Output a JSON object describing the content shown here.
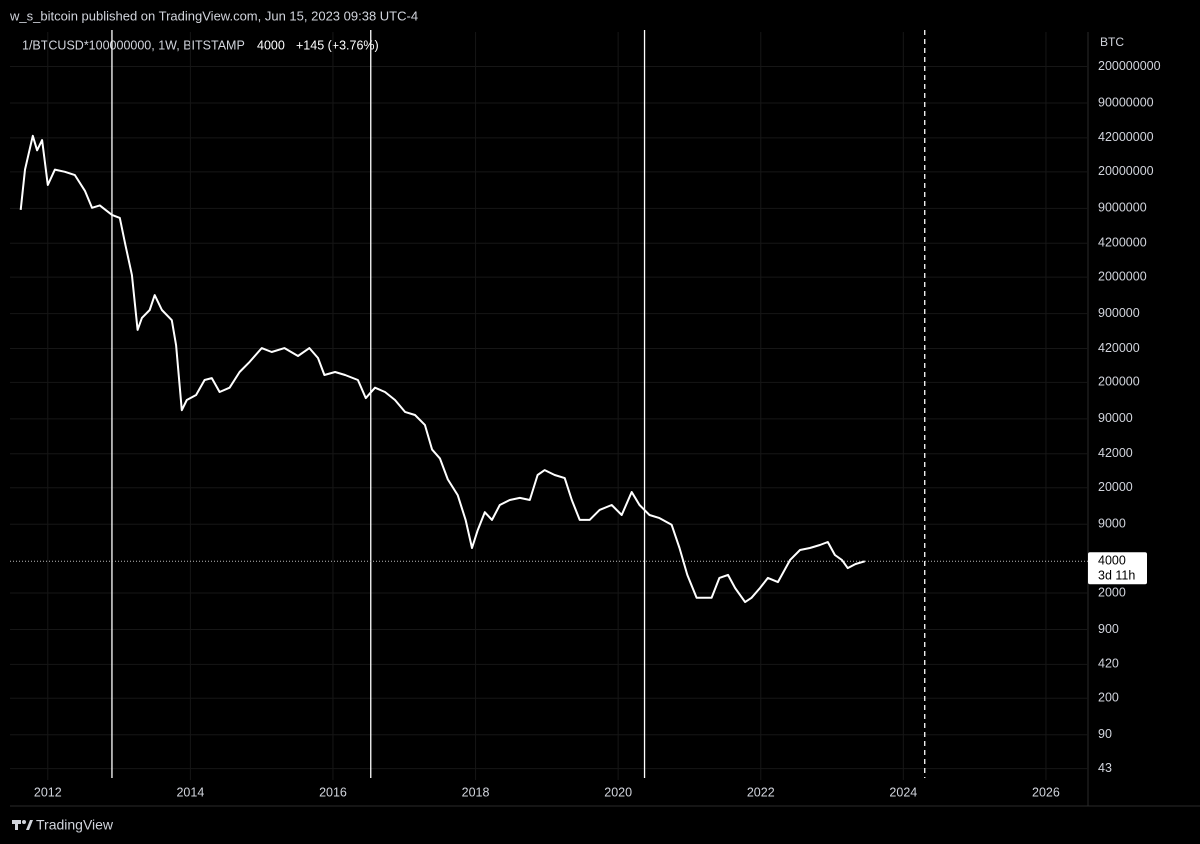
{
  "header": "w_s_bitcoin published on TradingView.com, Jun 15, 2023 09:38 UTC-4",
  "footer": "TradingView",
  "chart_data": {
    "type": "line",
    "legend": {
      "symbol": "1/BTCUSD*100000000, 1W, BITSTAMP",
      "change": "+145 (+3.76%)"
    },
    "y_unit": "BTC",
    "last": 4000,
    "countdown": "3d 11h",
    "log_scale": true,
    "grid": true,
    "xlim": [
      2011.47,
      2026.59
    ],
    "xticks": [
      2012,
      2014,
      2016,
      2018,
      2020,
      2022,
      2024,
      2026
    ],
    "ylim": [
      33.5,
      425600000
    ],
    "yticks": [
      43,
      90,
      200,
      420,
      900,
      2000,
      9000,
      20000,
      42000,
      90000,
      200000,
      420000,
      900000,
      2000000,
      4200000,
      9000000,
      20000000,
      42000000,
      90000000,
      200000000
    ],
    "vlines": [
      {
        "x": 2012.9,
        "style": "solid"
      },
      {
        "x": 2016.53,
        "style": "solid"
      },
      {
        "x": 2020.37,
        "style": "solid"
      },
      {
        "x": 2024.3,
        "style": "dashed"
      }
    ],
    "series": [
      {
        "color": "#ffffff",
        "x": [
          2011.62,
          2011.68,
          2011.79,
          2011.85,
          2011.92,
          2012.0,
          2012.1,
          2012.24,
          2012.38,
          2012.52,
          2012.62,
          2012.73,
          2012.9,
          2013.01,
          2013.09,
          2013.18,
          2013.26,
          2013.32,
          2013.43,
          2013.5,
          2013.6,
          2013.74,
          2013.8,
          2013.88,
          2013.95,
          2014.08,
          2014.2,
          2014.3,
          2014.41,
          2014.55,
          2014.69,
          2014.83,
          2015.0,
          2015.14,
          2015.32,
          2015.51,
          2015.67,
          2015.79,
          2015.88,
          2016.03,
          2016.17,
          2016.35,
          2016.46,
          2016.59,
          2016.73,
          2016.87,
          2017.01,
          2017.15,
          2017.29,
          2017.39,
          2017.5,
          2017.61,
          2017.75,
          2017.86,
          2017.95,
          2018.03,
          2018.13,
          2018.23,
          2018.34,
          2018.48,
          2018.62,
          2018.76,
          2018.87,
          2018.97,
          2019.11,
          2019.25,
          2019.35,
          2019.46,
          2019.6,
          2019.74,
          2019.91,
          2020.05,
          2020.19,
          2020.3,
          2020.44,
          2020.58,
          2020.75,
          2020.86,
          2020.97,
          2021.1,
          2021.21,
          2021.31,
          2021.42,
          2021.54,
          2021.64,
          2021.78,
          2021.87,
          2021.99,
          2022.1,
          2022.24,
          2022.41,
          2022.55,
          2022.69,
          2022.83,
          2022.94,
          2023.04,
          2023.14,
          2023.22,
          2023.33,
          2023.46
        ],
        "values": [
          8700000,
          21000000,
          44000000,
          32000000,
          40000000,
          15000000,
          21000000,
          20000000,
          18600000,
          13200000,
          9100000,
          9600000,
          7800000,
          7300000,
          4000000,
          2100000,
          630000,
          820000,
          975000,
          1350000,
          975000,
          780000,
          450000,
          109000,
          136000,
          152000,
          211000,
          220000,
          162000,
          178000,
          251000,
          313000,
          424000,
          389000,
          424000,
          356000,
          424000,
          341000,
          235000,
          251000,
          235000,
          211000,
          142000,
          178000,
          162000,
          136000,
          105000,
          98000,
          79000,
          46000,
          38000,
          24000,
          17000,
          9900,
          5350,
          7900,
          11700,
          9900,
          13700,
          15300,
          16000,
          15300,
          26400,
          29400,
          26400,
          24700,
          15300,
          9900,
          9900,
          12300,
          13700,
          11000,
          18200,
          13700,
          11000,
          10300,
          8900,
          5350,
          2970,
          1800,
          1800,
          1800,
          2780,
          2970,
          2230,
          1640,
          1800,
          2230,
          2780,
          2540,
          4110,
          5120,
          5350,
          5710,
          6100,
          4590,
          4110,
          3450,
          3770,
          4000
        ]
      }
    ]
  }
}
